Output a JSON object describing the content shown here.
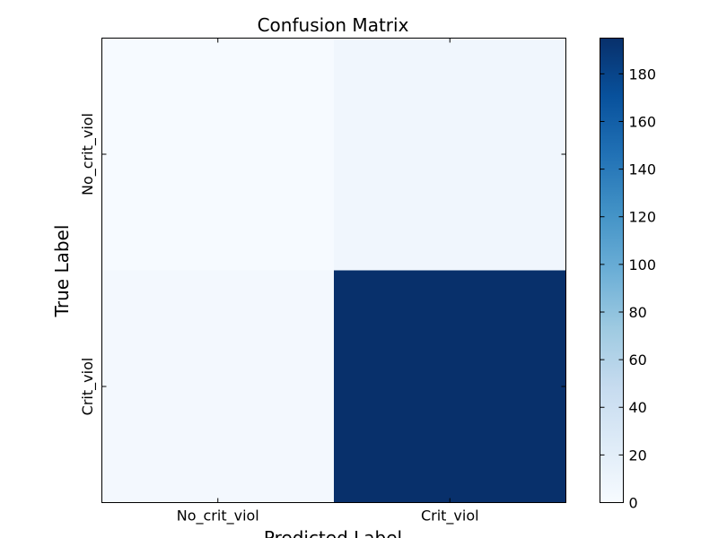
{
  "chart_data": {
    "type": "heatmap",
    "title": "Confusion Matrix",
    "xlabel": "Predicted Label",
    "ylabel": "True Label",
    "x_categories": [
      "No_crit_viol",
      "Crit_viol"
    ],
    "y_categories": [
      "No_crit_viol",
      "Crit_viol"
    ],
    "values": [
      [
        1,
        7
      ],
      [
        4,
        195
      ]
    ],
    "colormap": "Blues",
    "colorbar": {
      "range": [
        0,
        195
      ],
      "ticks": [
        0,
        20,
        40,
        60,
        80,
        100,
        120,
        140,
        160,
        180
      ]
    }
  }
}
